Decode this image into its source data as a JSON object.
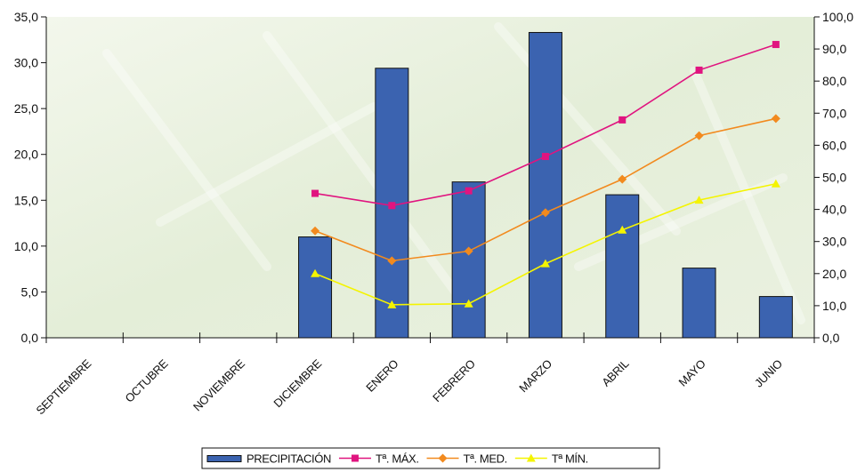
{
  "chart_data": {
    "type": "bar",
    "title": "",
    "categories": [
      "SEPTIEMBRE",
      "OCTUBRE",
      "NOVIEMBRE",
      "DICIEMBRE",
      "ENERO",
      "FEBRERO",
      "MARZO",
      "ABRIL",
      "MAYO",
      "JUNIO"
    ],
    "y_left": {
      "min": 0,
      "max": 35,
      "step": 5,
      "tick_labels": [
        "0,0",
        "5,0",
        "10,0",
        "15,0",
        "20,0",
        "25,0",
        "30,0",
        "35,0"
      ]
    },
    "y_right": {
      "min": 0,
      "max": 100,
      "step": 10,
      "tick_labels": [
        "0,0",
        "10,0",
        "20,0",
        "30,0",
        "40,0",
        "50,0",
        "60,0",
        "70,0",
        "80,0",
        "90,0",
        "100,0"
      ]
    },
    "grid": false,
    "legend_position": "bottom",
    "series": [
      {
        "name": "PRECIPITACIÓN",
        "type": "bar",
        "axis": "left",
        "color": "#3b63b0",
        "values": [
          null,
          null,
          null,
          11.0,
          29.4,
          17.0,
          33.3,
          15.6,
          7.6,
          4.5
        ]
      },
      {
        "name": "Tª. MÁX.",
        "type": "line",
        "axis": "right",
        "color": "#e0147f",
        "marker": "square",
        "values": [
          null,
          null,
          null,
          45.0,
          41.2,
          45.8,
          56.5,
          67.9,
          83.4,
          91.4
        ]
      },
      {
        "name": "Tª. MED.",
        "type": "line",
        "axis": "right",
        "color": "#f28a1e",
        "marker": "diamond",
        "values": [
          null,
          null,
          null,
          33.3,
          24.0,
          27.0,
          39.0,
          49.4,
          63.0,
          68.3
        ]
      },
      {
        "name": "Tª MÍN.",
        "type": "line",
        "axis": "right",
        "color": "#f4f400",
        "marker": "triangle",
        "values": [
          null,
          null,
          null,
          20.0,
          10.3,
          10.6,
          23.1,
          33.6,
          42.9,
          48.0
        ]
      }
    ]
  }
}
